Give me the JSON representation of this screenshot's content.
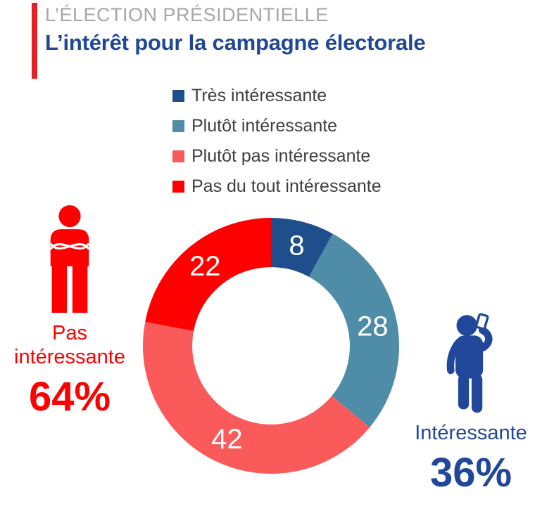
{
  "header": {
    "kicker": "L’ÉLECTION PRÉSIDENTIELLE",
    "title": "L’intérêt pour la campagne électorale"
  },
  "colors": {
    "accent_red": "#E32227",
    "header_gray": "#A6A6A6",
    "header_navy": "#1F4796",
    "legend_text": "#3F3F3F",
    "slice_label": "#FFFFFF",
    "annotation_red": "#FE0000",
    "annotation_navy": "#21479B"
  },
  "chart_data": {
    "type": "pie",
    "subtype": "donut",
    "categories": [
      "Très intéressante",
      "Plutôt intéressante",
      "Plutôt pas intéressante",
      "Pas du tout intéressante"
    ],
    "values": [
      8,
      28,
      42,
      22
    ],
    "colors": [
      "#1F4E8C",
      "#4E8CA8",
      "#FB5A5A",
      "#FE0000"
    ],
    "start_angle_deg": 0,
    "direction": "clockwise",
    "inner_radius_ratio": 0.615,
    "legend_position": "top",
    "data_labels": "inside-ring, white"
  },
  "annotations": {
    "left": {
      "icon": "person-arms-crossed",
      "label_line1": "Pas",
      "label_line2": "intéressante",
      "value": "64%"
    },
    "right": {
      "icon": "person-drinking",
      "label": "Intéressante",
      "value": "36%"
    }
  }
}
